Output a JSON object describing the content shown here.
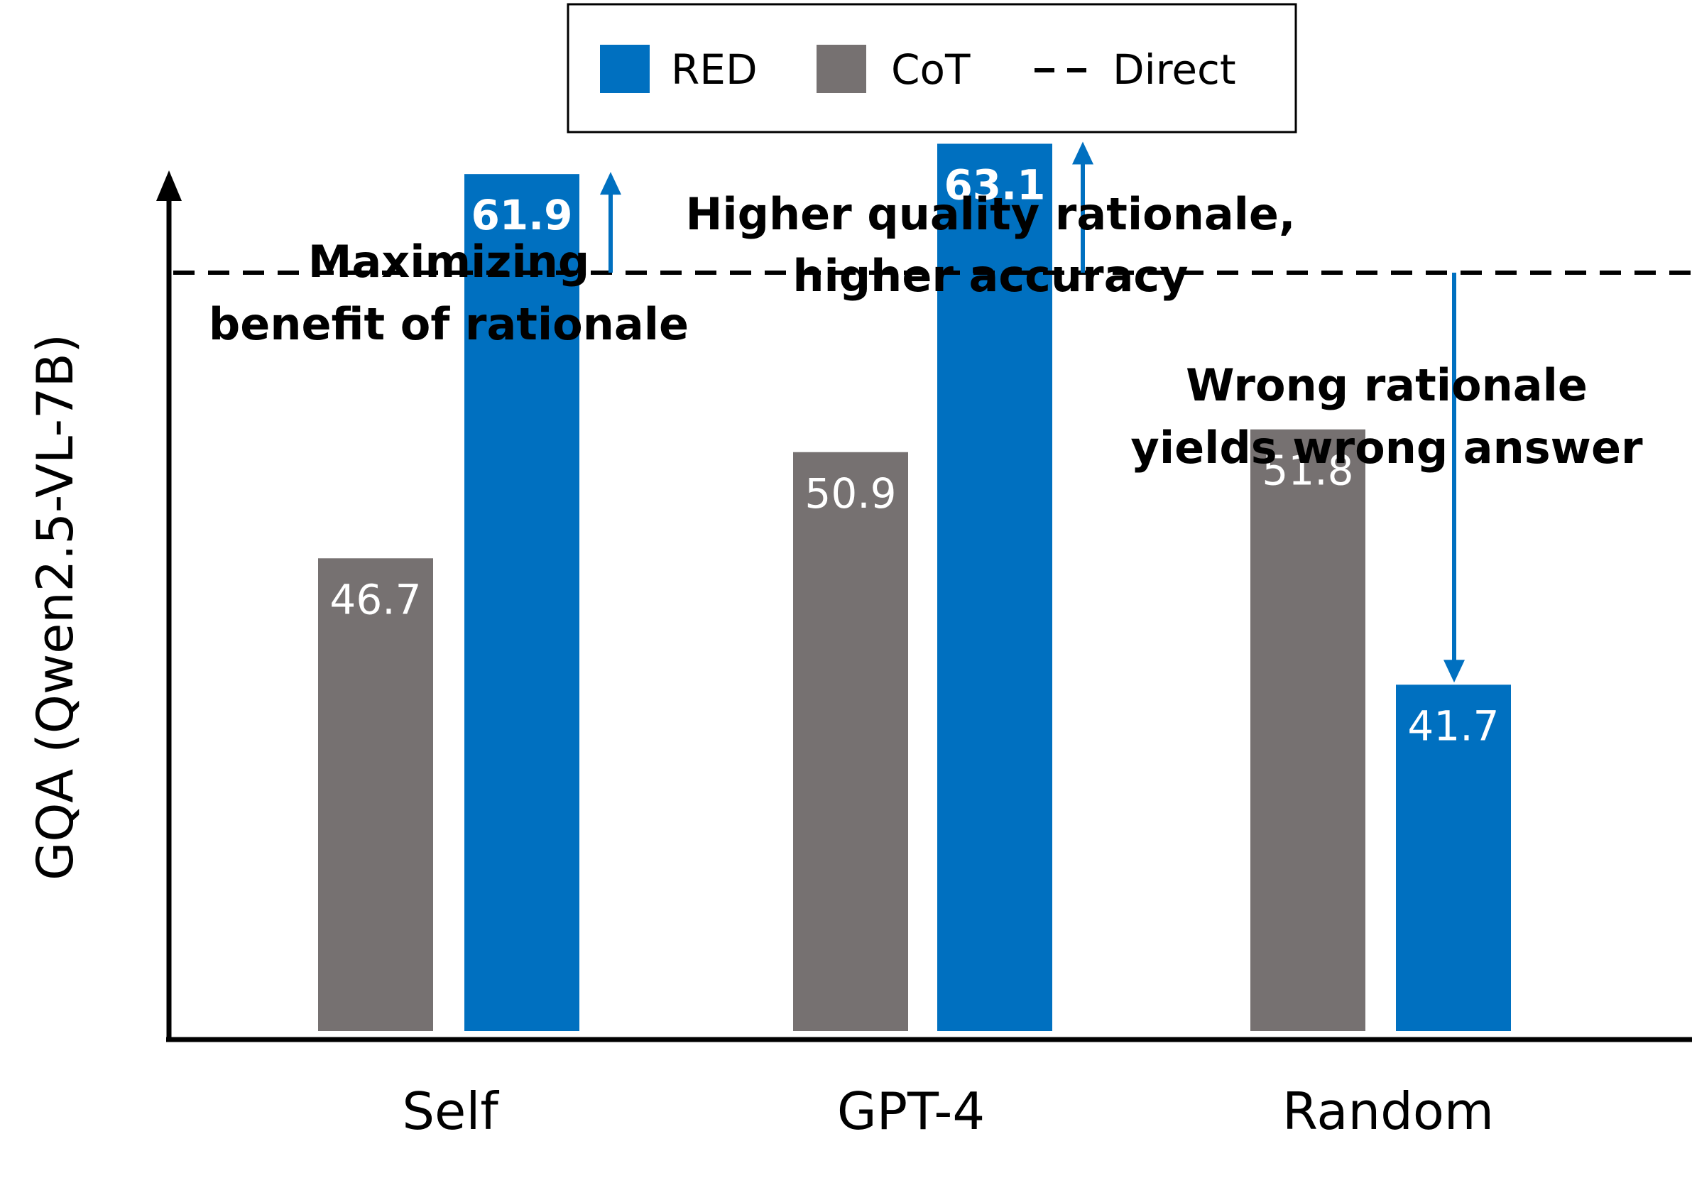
{
  "chart_data": {
    "type": "bar",
    "title": "",
    "xlabel": "",
    "ylabel": "GQA (Qwen2.5-VL-7B)",
    "categories": [
      "Self",
      "GPT-4",
      "Random"
    ],
    "series": [
      {
        "name": "CoT",
        "values": [
          46.7,
          50.9,
          51.8
        ],
        "color": "#767171"
      },
      {
        "name": "RED",
        "values": [
          61.9,
          63.1,
          41.7
        ],
        "color": "#0070c0"
      }
    ],
    "baseline": {
      "name": "Direct",
      "value": 58.0,
      "style": "dashed",
      "color": "#000000"
    },
    "ylim": [
      28,
      70
    ],
    "grid": false,
    "legend": {
      "position": "top-center",
      "items": [
        {
          "label": "RED",
          "marker": "square",
          "color": "#0070c0"
        },
        {
          "label": "CoT",
          "marker": "square",
          "color": "#767171"
        },
        {
          "label": "Direct",
          "marker": "dashed-line",
          "color": "#000000"
        }
      ]
    },
    "annotations": [
      {
        "category": "Self",
        "lines": [
          "Maximizing",
          "benefit of rationale"
        ],
        "arrow": "up"
      },
      {
        "category": "GPT-4",
        "lines": [
          "Higher quality rationale,",
          "higher accuracy"
        ],
        "arrow": "up"
      },
      {
        "category": "Random",
        "lines": [
          "Wrong rationale",
          "yields wrong answer"
        ],
        "arrow": "down"
      }
    ],
    "colors": {
      "red_bar": "#0070c0",
      "cot_bar": "#767171",
      "arrow": "#0070c0",
      "axis": "#000000"
    }
  }
}
